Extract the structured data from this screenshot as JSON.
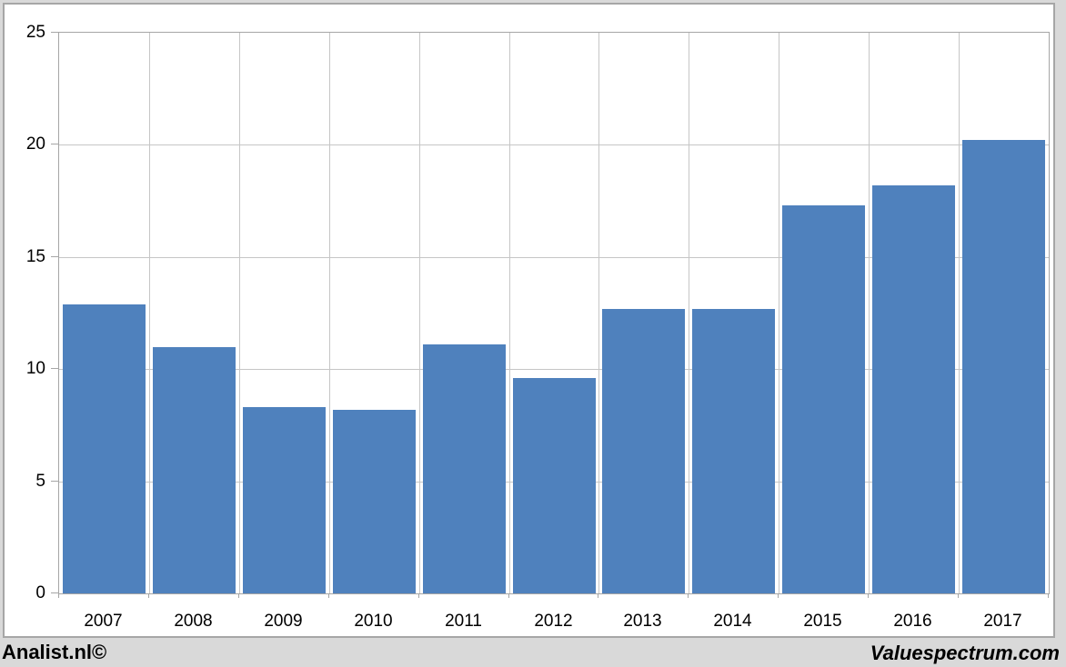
{
  "chart_data": {
    "type": "bar",
    "title": "",
    "xlabel": "",
    "ylabel": "",
    "categories": [
      "2007",
      "2008",
      "2009",
      "2010",
      "2011",
      "2012",
      "2013",
      "2014",
      "2015",
      "2016",
      "2017"
    ],
    "values": [
      12.9,
      11.0,
      8.3,
      8.2,
      11.1,
      9.6,
      12.7,
      12.7,
      17.3,
      18.2,
      20.2
    ],
    "ylim": [
      0,
      25
    ],
    "yticks": [
      0,
      5,
      10,
      15,
      20,
      25
    ],
    "grid": true,
    "legend": "none",
    "bar_color": "#4f81bd",
    "gridline_color": "#c6c6c6",
    "axis_color": "#a6a6a6",
    "plot_background": "#ffffff",
    "page_background": "#d9d9d9"
  },
  "footer": {
    "left_label": "Analist.nl©",
    "right_label": "Valuespectrum.com"
  }
}
